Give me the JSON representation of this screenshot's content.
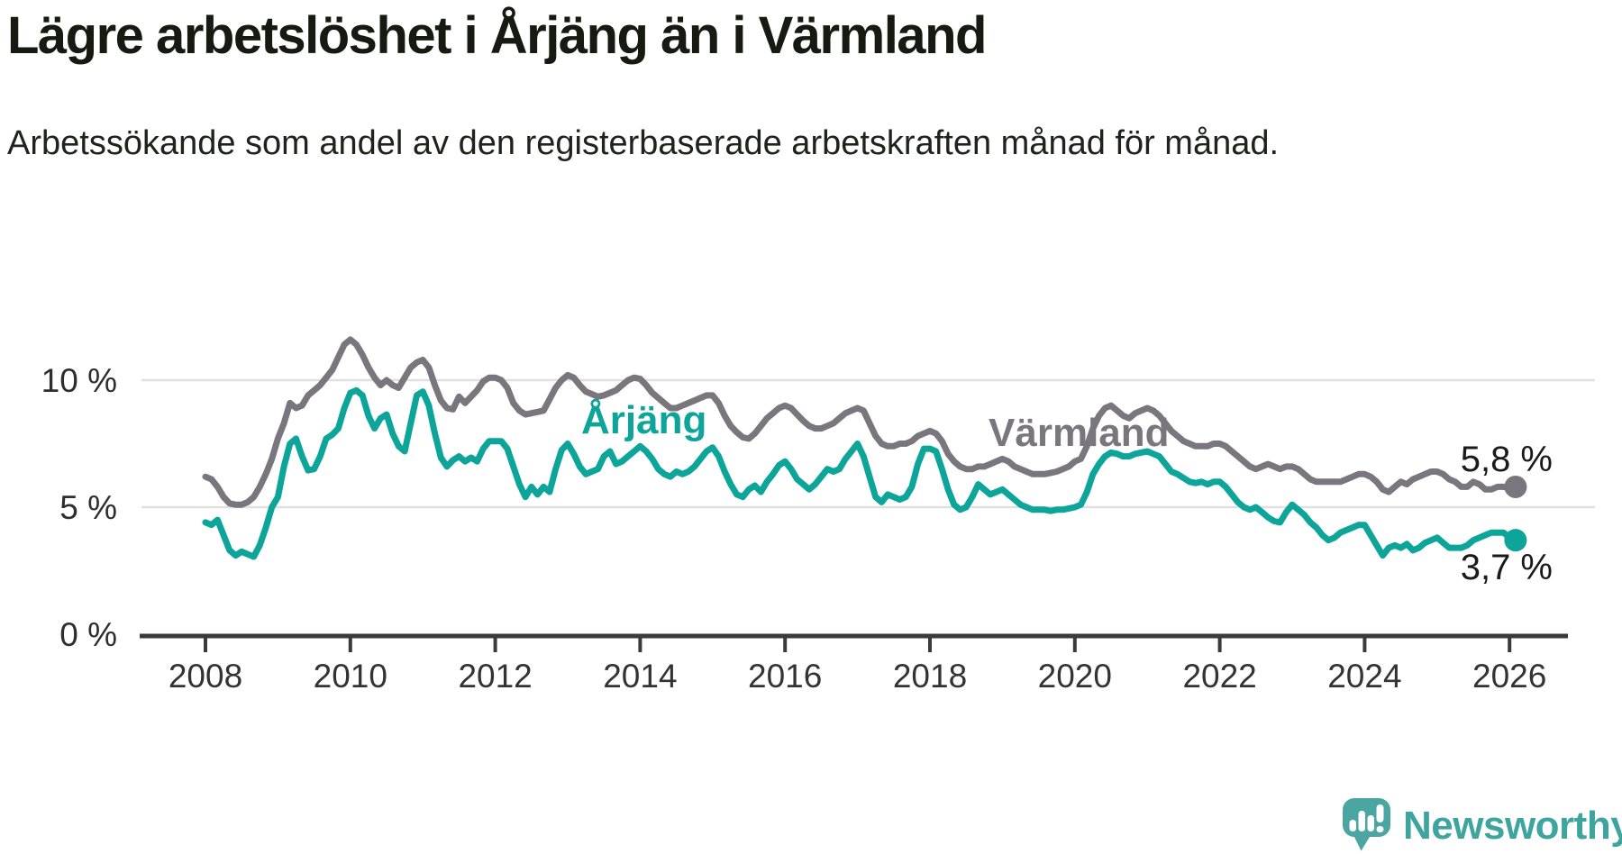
{
  "chart_data": {
    "type": "line",
    "title": "Lägre arbetslöshet i Årjäng än i Värmland",
    "subtitle": "Arbetssökande som andel av den registerbaserade arbetskraften månad för månad.",
    "x_start": 2008,
    "x_step_months": 1,
    "x_end": 2026.08,
    "ylim": [
      0,
      12.5
    ],
    "grid": "horizontal",
    "legend_position": "inline-labels",
    "y_ticks": [
      {
        "value": 0,
        "label": "0 %"
      },
      {
        "value": 5,
        "label": "5 %"
      },
      {
        "value": 10,
        "label": "10 %"
      }
    ],
    "x_ticks": [
      {
        "value": 2008,
        "label": "2008"
      },
      {
        "value": 2010,
        "label": "2010"
      },
      {
        "value": 2012,
        "label": "2012"
      },
      {
        "value": 2014,
        "label": "2014"
      },
      {
        "value": 2016,
        "label": "2016"
      },
      {
        "value": 2018,
        "label": "2018"
      },
      {
        "value": 2020,
        "label": "2020"
      },
      {
        "value": 2022,
        "label": "2022"
      },
      {
        "value": 2024,
        "label": "2024"
      },
      {
        "value": 2026,
        "label": "2026"
      }
    ],
    "series": [
      {
        "name": "Värmland",
        "color": "#79767d",
        "end_label": "5,8 %",
        "end_value": 5.8,
        "values": [
          6.2,
          6.1,
          5.8,
          5.4,
          5.15,
          5.1,
          5.1,
          5.2,
          5.4,
          5.8,
          6.3,
          6.9,
          7.7,
          8.3,
          9.1,
          8.9,
          9.0,
          9.4,
          9.6,
          9.8,
          10.1,
          10.4,
          10.9,
          11.4,
          11.6,
          11.4,
          11.0,
          10.5,
          10.1,
          9.8,
          10.0,
          9.8,
          9.7,
          10.1,
          10.5,
          10.7,
          10.8,
          10.5,
          9.8,
          9.2,
          8.9,
          8.85,
          9.35,
          9.1,
          9.35,
          9.6,
          9.95,
          10.1,
          10.1,
          10.0,
          9.7,
          9.1,
          8.8,
          8.65,
          8.7,
          8.75,
          8.8,
          9.25,
          9.7,
          10.0,
          10.2,
          10.1,
          9.8,
          9.55,
          9.45,
          9.35,
          9.4,
          9.5,
          9.6,
          9.8,
          10.0,
          10.1,
          10.05,
          9.8,
          9.5,
          9.3,
          9.1,
          8.9,
          8.9,
          9.0,
          9.1,
          9.2,
          9.3,
          9.4,
          9.4,
          9.1,
          8.6,
          8.2,
          7.95,
          7.75,
          7.7,
          7.9,
          8.2,
          8.5,
          8.7,
          8.9,
          9.0,
          8.9,
          8.65,
          8.4,
          8.2,
          8.1,
          8.1,
          8.2,
          8.3,
          8.5,
          8.7,
          8.8,
          8.9,
          8.8,
          8.3,
          7.8,
          7.5,
          7.4,
          7.4,
          7.5,
          7.5,
          7.6,
          7.8,
          7.9,
          8.0,
          7.9,
          7.6,
          7.1,
          6.8,
          6.6,
          6.5,
          6.5,
          6.6,
          6.6,
          6.7,
          6.8,
          6.9,
          6.8,
          6.6,
          6.5,
          6.4,
          6.3,
          6.3,
          6.3,
          6.35,
          6.4,
          6.5,
          6.6,
          6.8,
          6.9,
          7.4,
          8.1,
          8.6,
          8.9,
          9.0,
          8.8,
          8.6,
          8.5,
          8.7,
          8.8,
          8.9,
          8.8,
          8.6,
          8.3,
          8.0,
          7.8,
          7.6,
          7.5,
          7.4,
          7.4,
          7.4,
          7.5,
          7.5,
          7.4,
          7.2,
          7.0,
          6.8,
          6.6,
          6.5,
          6.6,
          6.7,
          6.6,
          6.5,
          6.6,
          6.6,
          6.5,
          6.3,
          6.1,
          6.0,
          6.0,
          6.0,
          6.0,
          6.0,
          6.1,
          6.2,
          6.3,
          6.3,
          6.2,
          6.0,
          5.7,
          5.6,
          5.8,
          6.0,
          5.9,
          6.1,
          6.2,
          6.3,
          6.4,
          6.4,
          6.3,
          6.1,
          6.0,
          5.8,
          5.8,
          6.0,
          5.9,
          5.7,
          5.7,
          5.8,
          5.8,
          5.75,
          5.8
        ]
      },
      {
        "name": "Årjäng",
        "color": "#0da59a",
        "end_label": "3,7 %",
        "end_value": 3.7,
        "values": [
          4.4,
          4.3,
          4.5,
          3.9,
          3.3,
          3.1,
          3.25,
          3.15,
          3.05,
          3.5,
          4.2,
          5.0,
          5.4,
          6.6,
          7.5,
          7.7,
          7.0,
          6.45,
          6.5,
          7.0,
          7.7,
          7.85,
          8.1,
          8.9,
          9.5,
          9.6,
          9.4,
          8.6,
          8.1,
          8.5,
          8.65,
          7.9,
          7.4,
          7.2,
          8.3,
          9.4,
          9.55,
          9.0,
          7.9,
          6.95,
          6.6,
          6.85,
          7.0,
          6.8,
          6.95,
          6.8,
          7.3,
          7.6,
          7.6,
          7.6,
          7.3,
          6.6,
          5.9,
          5.4,
          5.8,
          5.5,
          5.8,
          5.6,
          6.5,
          7.25,
          7.5,
          7.1,
          6.6,
          6.3,
          6.4,
          6.5,
          7.0,
          7.2,
          6.7,
          6.8,
          7.0,
          7.2,
          7.4,
          7.2,
          6.9,
          6.5,
          6.3,
          6.2,
          6.4,
          6.3,
          6.4,
          6.6,
          6.9,
          7.2,
          7.35,
          7.0,
          6.4,
          5.9,
          5.5,
          5.4,
          5.7,
          5.85,
          5.6,
          6.0,
          6.3,
          6.65,
          6.8,
          6.5,
          6.1,
          5.9,
          5.7,
          5.9,
          6.2,
          6.5,
          6.4,
          6.5,
          6.9,
          7.2,
          7.5,
          7.0,
          6.2,
          5.4,
          5.2,
          5.5,
          5.4,
          5.3,
          5.4,
          5.8,
          6.7,
          7.3,
          7.3,
          7.2,
          6.5,
          5.7,
          5.1,
          4.9,
          5.0,
          5.4,
          5.9,
          5.7,
          5.5,
          5.6,
          5.7,
          5.5,
          5.3,
          5.1,
          5.0,
          4.9,
          4.9,
          4.9,
          4.85,
          4.9,
          4.9,
          4.95,
          5.0,
          5.1,
          5.6,
          6.3,
          6.7,
          7.0,
          7.15,
          7.1,
          7.0,
          7.0,
          7.1,
          7.15,
          7.2,
          7.1,
          7.0,
          6.7,
          6.4,
          6.3,
          6.15,
          6.0,
          5.95,
          6.0,
          5.9,
          6.0,
          6.0,
          5.8,
          5.5,
          5.2,
          5.0,
          4.9,
          5.0,
          4.8,
          4.6,
          4.45,
          4.4,
          4.8,
          5.1,
          4.9,
          4.7,
          4.4,
          4.2,
          3.9,
          3.7,
          3.8,
          4.0,
          4.1,
          4.2,
          4.3,
          4.3,
          3.9,
          3.5,
          3.1,
          3.4,
          3.5,
          3.4,
          3.55,
          3.3,
          3.4,
          3.6,
          3.7,
          3.8,
          3.6,
          3.4,
          3.4,
          3.4,
          3.5,
          3.7,
          3.8,
          3.9,
          4.0,
          4.0,
          4.0,
          3.8,
          3.7
        ]
      }
    ]
  },
  "logo": {
    "wordmark": "Newsworthy",
    "icon": "newsworthy-bubble-barchart-icon",
    "icon_color": "#4ba6a1",
    "text_color": "#3da59e"
  }
}
